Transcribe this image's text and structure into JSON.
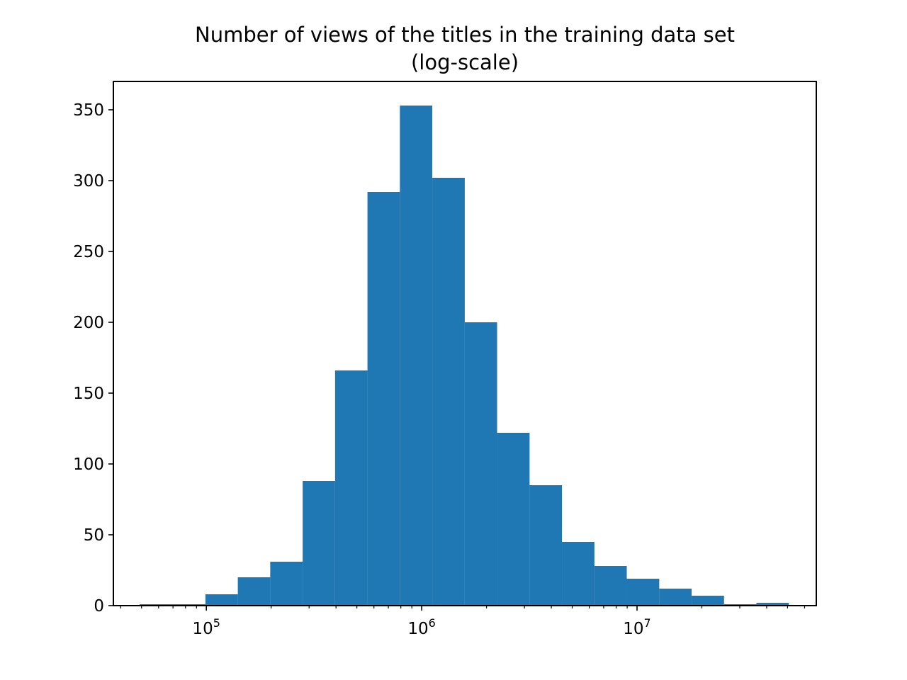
{
  "chart_data": {
    "type": "bar",
    "title": "Number of views of the titles in the training data set",
    "subtitle": "(log-scale)",
    "xlabel": "",
    "ylabel": "",
    "xscale": "log",
    "xlim": [
      37000,
      68000000
    ],
    "ylim": [
      0,
      370
    ],
    "grid": false,
    "color": "#1f77b4",
    "bin_edges": [
      49000,
      69000,
      99000,
      140000,
      198000,
      280000,
      396000,
      560000,
      792000,
      1120000,
      1585000,
      2240000,
      3170000,
      4480000,
      6340000,
      8960000,
      12680000,
      17930000,
      25350000,
      35850000,
      50700000
    ],
    "values": [
      1,
      1,
      8,
      20,
      31,
      88,
      166,
      292,
      353,
      302,
      200,
      122,
      85,
      45,
      28,
      19,
      12,
      7,
      1,
      2
    ],
    "xticks": [
      {
        "base": "10",
        "exp": "5",
        "value": 100000
      },
      {
        "base": "10",
        "exp": "6",
        "value": 1000000
      },
      {
        "base": "10",
        "exp": "7",
        "value": 10000000
      }
    ],
    "yticks": [
      "0",
      "50",
      "100",
      "150",
      "200",
      "250",
      "300",
      "350"
    ]
  }
}
